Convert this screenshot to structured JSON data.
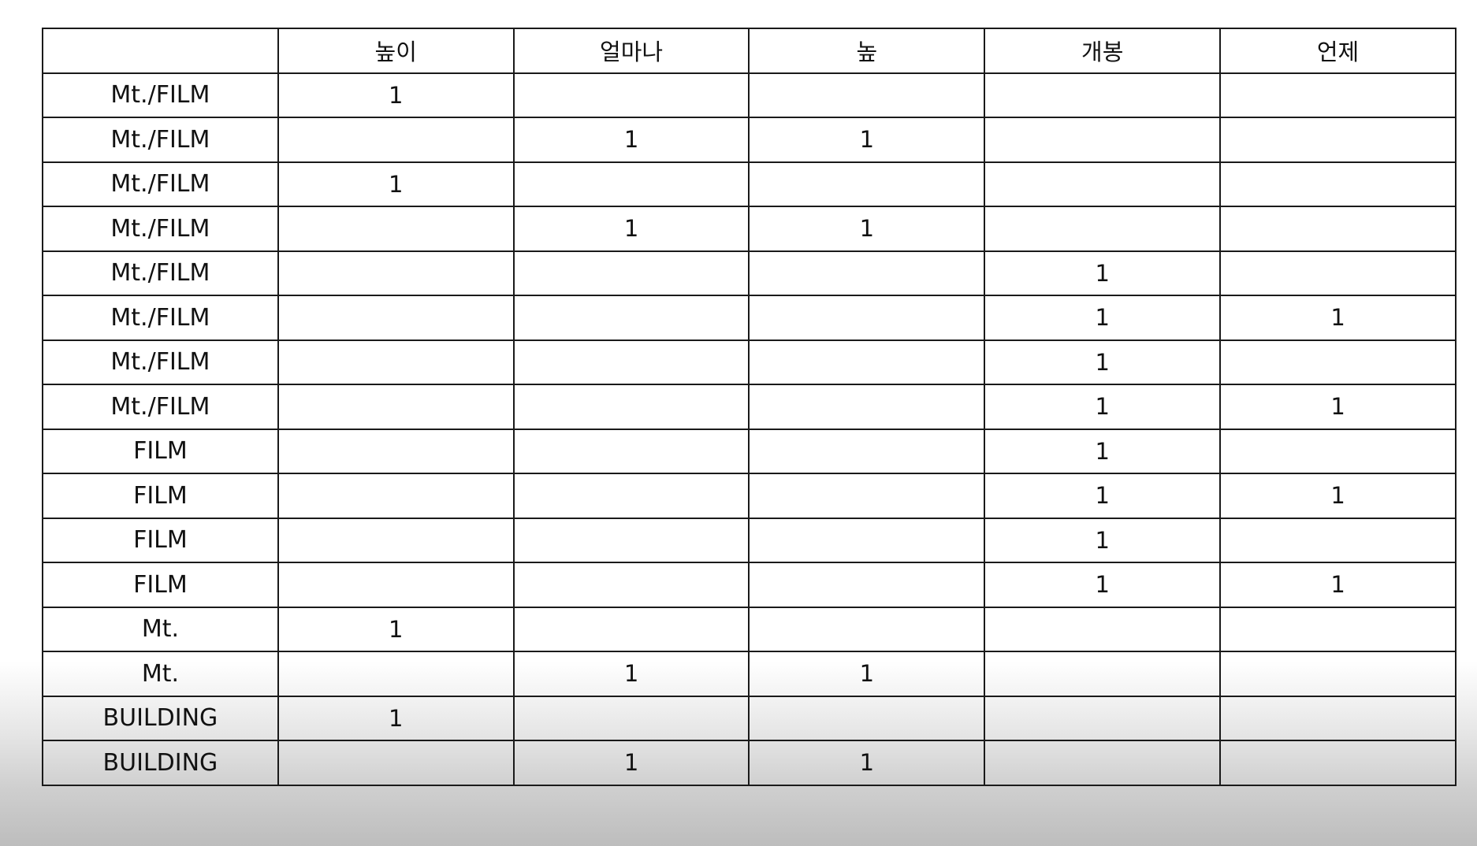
{
  "table": {
    "headers": [
      "",
      "높이",
      "얼마나",
      "높",
      "개봉",
      "언제"
    ],
    "rows": [
      [
        "Mt./FILM",
        "1",
        "",
        "",
        "",
        ""
      ],
      [
        "Mt./FILM",
        "",
        "1",
        "1",
        "",
        ""
      ],
      [
        "Mt./FILM",
        "1",
        "",
        "",
        "",
        ""
      ],
      [
        "Mt./FILM",
        "",
        "1",
        "1",
        "",
        ""
      ],
      [
        "Mt./FILM",
        "",
        "",
        "",
        "1",
        ""
      ],
      [
        "Mt./FILM",
        "",
        "",
        "",
        "1",
        "1"
      ],
      [
        "Mt./FILM",
        "",
        "",
        "",
        "1",
        ""
      ],
      [
        "Mt./FILM",
        "",
        "",
        "",
        "1",
        "1"
      ],
      [
        "FILM",
        "",
        "",
        "",
        "1",
        ""
      ],
      [
        "FILM",
        "",
        "",
        "",
        "1",
        "1"
      ],
      [
        "FILM",
        "",
        "",
        "",
        "1",
        ""
      ],
      [
        "FILM",
        "",
        "",
        "",
        "1",
        "1"
      ],
      [
        "Mt.",
        "1",
        "",
        "",
        "",
        ""
      ],
      [
        "Mt.",
        "",
        "1",
        "1",
        "",
        ""
      ],
      [
        "BUILDING",
        "1",
        "",
        "",
        "",
        ""
      ],
      [
        "BUILDING",
        "",
        "1",
        "1",
        "",
        ""
      ]
    ]
  }
}
